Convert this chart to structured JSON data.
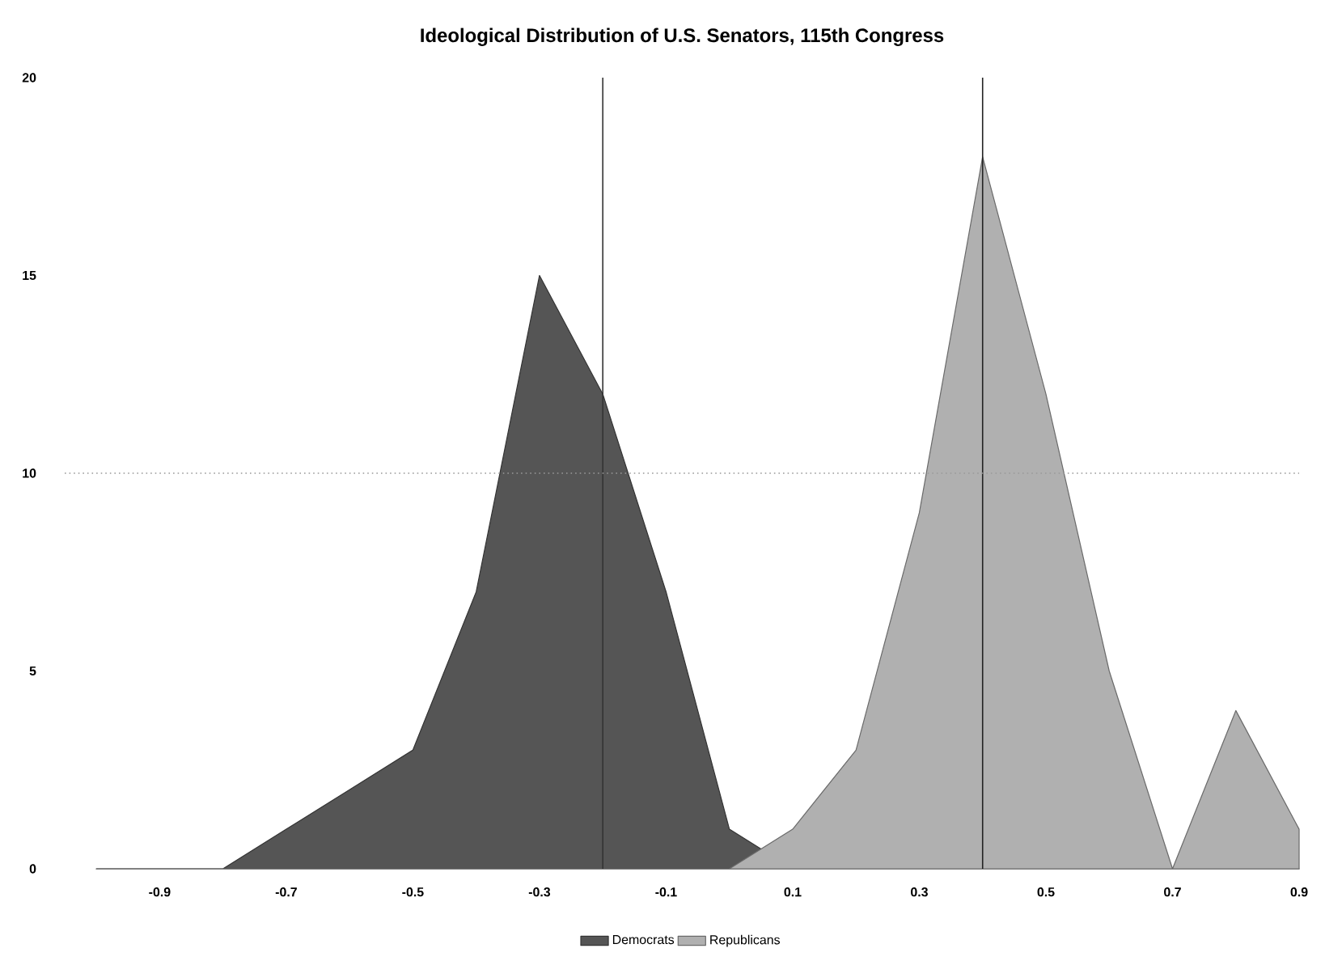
{
  "chart_data": {
    "type": "area",
    "title": "Ideological Distribution of U.S. Senators, 115th Congress",
    "x": [
      -1.0,
      -0.9,
      -0.8,
      -0.7,
      -0.6,
      -0.5,
      -0.4,
      -0.3,
      -0.2,
      -0.1,
      0.0,
      0.1,
      0.2,
      0.3,
      0.4,
      0.5,
      0.6,
      0.7,
      0.8,
      0.9
    ],
    "series": [
      {
        "name": "Democrats",
        "color": "#555555",
        "values": [
          0,
          0,
          0,
          1,
          2,
          3,
          7,
          15,
          12,
          7,
          1,
          0,
          0,
          0,
          0,
          0,
          0,
          0,
          0,
          0
        ]
      },
      {
        "name": "Republicans",
        "color": "#b0b0b0",
        "values": [
          0,
          0,
          0,
          0,
          0,
          0,
          0,
          0,
          0,
          0,
          0,
          1,
          3,
          9,
          18,
          12,
          5,
          0,
          4,
          1
        ]
      }
    ],
    "xlim": [
      -1.05,
      0.9
    ],
    "xticks": [
      -0.9,
      -0.7,
      -0.5,
      -0.3,
      -0.1,
      0.1,
      0.3,
      0.5,
      0.7,
      0.9
    ],
    "ylim": [
      0,
      20
    ],
    "yticks": [
      0,
      5,
      10,
      15,
      20
    ],
    "ref_lines": [
      {
        "axis": "x",
        "value": -0.2,
        "color": "#333333",
        "line_style": "solid"
      },
      {
        "axis": "x",
        "value": 0.4,
        "color": "#222222",
        "line_style": "solid"
      },
      {
        "axis": "y",
        "value": 10,
        "color": "#999999",
        "line_style": "dotted"
      }
    ],
    "legend": "bottom"
  }
}
